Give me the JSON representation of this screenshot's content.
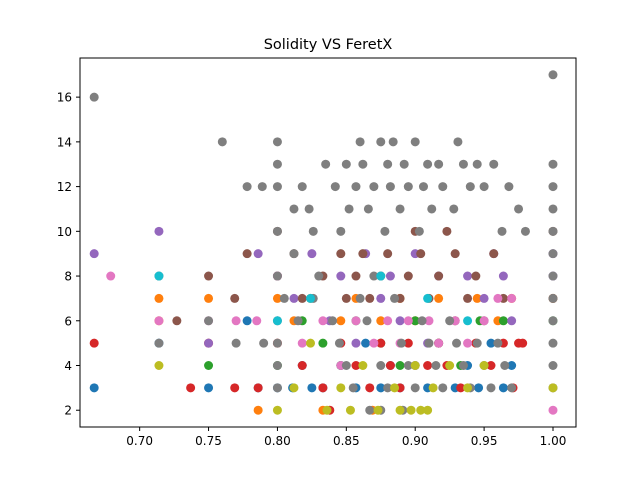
{
  "chart_data": {
    "type": "scatter",
    "title": "Solidity VS FeretX",
    "xlabel": "",
    "ylabel": "",
    "xlim": [
      0.6567,
      1.0167
    ],
    "ylim": [
      1.25,
      17.75
    ],
    "x_ticks": [
      {
        "value": 0.7,
        "label": "0.70"
      },
      {
        "value": 0.75,
        "label": "0.75"
      },
      {
        "value": 0.8,
        "label": "0.80"
      },
      {
        "value": 0.85,
        "label": "0.85"
      },
      {
        "value": 0.9,
        "label": "0.90"
      },
      {
        "value": 0.95,
        "label": "0.95"
      },
      {
        "value": 1.0,
        "label": "1.00"
      }
    ],
    "y_ticks": [
      {
        "value": 2,
        "label": "2"
      },
      {
        "value": 4,
        "label": "4"
      },
      {
        "value": 6,
        "label": "6"
      },
      {
        "value": 8,
        "label": "8"
      },
      {
        "value": 10,
        "label": "10"
      },
      {
        "value": 12,
        "label": "12"
      },
      {
        "value": 14,
        "label": "14"
      },
      {
        "value": 16,
        "label": "16"
      }
    ],
    "grid": false,
    "legend": "none",
    "series": [
      {
        "color": "#1f77b4",
        "points": [
          [
            0.667,
            3
          ],
          [
            0.714,
            5
          ],
          [
            0.75,
            3
          ],
          [
            0.778,
            6
          ],
          [
            0.786,
            3
          ],
          [
            0.8,
            3
          ],
          [
            0.811,
            3
          ],
          [
            0.818,
            4
          ],
          [
            0.825,
            3
          ],
          [
            0.833,
            3
          ],
          [
            0.846,
            4
          ],
          [
            0.857,
            3
          ],
          [
            0.864,
            5
          ],
          [
            0.875,
            3
          ],
          [
            0.882,
            4
          ],
          [
            0.889,
            3
          ],
          [
            0.9,
            4
          ],
          [
            0.909,
            3
          ],
          [
            0.917,
            5
          ],
          [
            0.929,
            3
          ],
          [
            0.938,
            4
          ],
          [
            0.946,
            3
          ],
          [
            0.955,
            5
          ],
          [
            0.964,
            3
          ],
          [
            0.97,
            4
          ]
        ]
      },
      {
        "color": "#ff7f0e",
        "points": [
          [
            0.714,
            6
          ],
          [
            0.714,
            7
          ],
          [
            0.75,
            7
          ],
          [
            0.786,
            2
          ],
          [
            0.8,
            7
          ],
          [
            0.812,
            6
          ],
          [
            0.824,
            7
          ],
          [
            0.833,
            2
          ],
          [
            0.846,
            6
          ],
          [
            0.857,
            7
          ],
          [
            0.869,
            2
          ],
          [
            0.875,
            6
          ],
          [
            0.889,
            7
          ],
          [
            0.9,
            6
          ],
          [
            0.917,
            7
          ],
          [
            0.929,
            6
          ],
          [
            0.945,
            7
          ],
          [
            0.96,
            6
          ],
          [
            0.97,
            7
          ],
          [
            1.0,
            7
          ]
        ]
      },
      {
        "color": "#2ca02c",
        "points": [
          [
            0.75,
            4
          ],
          [
            0.8,
            4
          ],
          [
            0.818,
            6
          ],
          [
            0.833,
            5
          ],
          [
            0.846,
            4
          ],
          [
            0.857,
            6
          ],
          [
            0.875,
            5
          ],
          [
            0.889,
            4
          ],
          [
            0.9,
            6
          ],
          [
            0.917,
            5
          ],
          [
            0.933,
            4
          ],
          [
            0.947,
            6
          ],
          [
            0.964,
            6
          ],
          [
            1.0,
            6
          ]
        ]
      },
      {
        "color": "#d62728",
        "points": [
          [
            0.667,
            5
          ],
          [
            0.737,
            3
          ],
          [
            0.75,
            5
          ],
          [
            0.769,
            3
          ],
          [
            0.786,
            3
          ],
          [
            0.8,
            5
          ],
          [
            0.818,
            4
          ],
          [
            0.833,
            3
          ],
          [
            0.838,
            2
          ],
          [
            0.846,
            5
          ],
          [
            0.857,
            4
          ],
          [
            0.867,
            3
          ],
          [
            0.875,
            5
          ],
          [
            0.882,
            4
          ],
          [
            0.889,
            3
          ],
          [
            0.895,
            5
          ],
          [
            0.909,
            4
          ],
          [
            0.917,
            5
          ],
          [
            0.923,
            4
          ],
          [
            0.933,
            3
          ],
          [
            0.944,
            5
          ],
          [
            0.955,
            4
          ],
          [
            0.964,
            5
          ],
          [
            0.971,
            3
          ],
          [
            0.975,
            5
          ],
          [
            0.978,
            5
          ]
        ]
      },
      {
        "color": "#9467bd",
        "points": [
          [
            0.667,
            9
          ],
          [
            0.714,
            10
          ],
          [
            0.75,
            5
          ],
          [
            0.786,
            9
          ],
          [
            0.8,
            8
          ],
          [
            0.812,
            7
          ],
          [
            0.825,
            9
          ],
          [
            0.838,
            6
          ],
          [
            0.846,
            8
          ],
          [
            0.857,
            5
          ],
          [
            0.864,
            9
          ],
          [
            0.875,
            7
          ],
          [
            0.882,
            8
          ],
          [
            0.889,
            6
          ],
          [
            0.9,
            9
          ],
          [
            0.909,
            5
          ],
          [
            0.917,
            8
          ],
          [
            0.929,
            6
          ],
          [
            0.938,
            8
          ],
          [
            0.95,
            7
          ],
          [
            0.957,
            9
          ],
          [
            0.964,
            8
          ],
          [
            0.97,
            6
          ],
          [
            1.0,
            8
          ],
          [
            1.0,
            9
          ]
        ]
      },
      {
        "color": "#8c564b",
        "points": [
          [
            0.727,
            6
          ],
          [
            0.75,
            8
          ],
          [
            0.769,
            7
          ],
          [
            0.778,
            9
          ],
          [
            0.8,
            10
          ],
          [
            0.8,
            8
          ],
          [
            0.812,
            9
          ],
          [
            0.818,
            7
          ],
          [
            0.833,
            8
          ],
          [
            0.846,
            9
          ],
          [
            0.85,
            7
          ],
          [
            0.857,
            8
          ],
          [
            0.862,
            9
          ],
          [
            0.867,
            7
          ],
          [
            0.875,
            8
          ],
          [
            0.88,
            9
          ],
          [
            0.889,
            7
          ],
          [
            0.895,
            8
          ],
          [
            0.9,
            10
          ],
          [
            0.904,
            9
          ],
          [
            0.91,
            7
          ],
          [
            0.917,
            8
          ],
          [
            0.923,
            10
          ],
          [
            0.929,
            9
          ],
          [
            0.938,
            7
          ],
          [
            0.944,
            8
          ],
          [
            0.95,
            6
          ],
          [
            0.957,
            9
          ],
          [
            0.964,
            7
          ],
          [
            1.0,
            10
          ],
          [
            1.0,
            7
          ]
        ]
      },
      {
        "color": "#e377c2",
        "points": [
          [
            0.679,
            8
          ],
          [
            0.714,
            6
          ],
          [
            0.75,
            6
          ],
          [
            0.77,
            6
          ],
          [
            0.785,
            6
          ],
          [
            0.8,
            8
          ],
          [
            0.818,
            5
          ],
          [
            0.833,
            6
          ],
          [
            0.846,
            4
          ],
          [
            0.857,
            6
          ],
          [
            0.87,
            5
          ],
          [
            0.88,
            6
          ],
          [
            0.889,
            5
          ],
          [
            0.895,
            6
          ],
          [
            0.9,
            4
          ],
          [
            0.91,
            6
          ],
          [
            0.917,
            5
          ],
          [
            0.929,
            6
          ],
          [
            0.938,
            5
          ],
          [
            0.95,
            6
          ],
          [
            0.96,
            7
          ],
          [
            0.97,
            7
          ],
          [
            1.0,
            2
          ]
        ]
      },
      {
        "color": "#7f7f7f",
        "points": [
          [
            0.667,
            16
          ],
          [
            0.714,
            5
          ],
          [
            0.75,
            6
          ],
          [
            0.76,
            14
          ],
          [
            0.778,
            12
          ],
          [
            0.789,
            12
          ],
          [
            0.8,
            14
          ],
          [
            0.8,
            13
          ],
          [
            0.8,
            12
          ],
          [
            0.8,
            10
          ],
          [
            0.8,
            8
          ],
          [
            0.8,
            6
          ],
          [
            0.8,
            5
          ],
          [
            0.8,
            4
          ],
          [
            0.8,
            3
          ],
          [
            0.812,
            11
          ],
          [
            0.812,
            9
          ],
          [
            0.818,
            12
          ],
          [
            0.823,
            11
          ],
          [
            0.826,
            10
          ],
          [
            0.835,
            13
          ],
          [
            0.842,
            12
          ],
          [
            0.846,
            10
          ],
          [
            0.85,
            13
          ],
          [
            0.852,
            11
          ],
          [
            0.857,
            12
          ],
          [
            0.86,
            14
          ],
          [
            0.862,
            13
          ],
          [
            0.866,
            11
          ],
          [
            0.87,
            12
          ],
          [
            0.875,
            14
          ],
          [
            0.878,
            10
          ],
          [
            0.88,
            13
          ],
          [
            0.882,
            12
          ],
          [
            0.884,
            14
          ],
          [
            0.889,
            11
          ],
          [
            0.892,
            13
          ],
          [
            0.895,
            12
          ],
          [
            0.9,
            14
          ],
          [
            0.903,
            10
          ],
          [
            0.906,
            12
          ],
          [
            0.909,
            13
          ],
          [
            0.912,
            11
          ],
          [
            0.917,
            13
          ],
          [
            0.92,
            12
          ],
          [
            0.928,
            11
          ],
          [
            0.931,
            14
          ],
          [
            0.935,
            13
          ],
          [
            0.94,
            12
          ],
          [
            0.945,
            13
          ],
          [
            0.95,
            12
          ],
          [
            0.957,
            13
          ],
          [
            0.963,
            10
          ],
          [
            0.968,
            12
          ],
          [
            0.975,
            11
          ],
          [
            0.98,
            10
          ],
          [
            1.0,
            17
          ],
          [
            1.0,
            13
          ],
          [
            1.0,
            12
          ],
          [
            1.0,
            11
          ],
          [
            1.0,
            10
          ],
          [
            1.0,
            9
          ],
          [
            1.0,
            8
          ],
          [
            1.0,
            7
          ],
          [
            1.0,
            6
          ],
          [
            1.0,
            5
          ],
          [
            1.0,
            4
          ],
          [
            1.0,
            3
          ],
          [
            0.714,
            8
          ],
          [
            0.77,
            5
          ],
          [
            0.79,
            5
          ],
          [
            0.805,
            7
          ],
          [
            0.815,
            6
          ],
          [
            0.826,
            7
          ],
          [
            0.83,
            8
          ],
          [
            0.84,
            6
          ],
          [
            0.845,
            5
          ],
          [
            0.85,
            4
          ],
          [
            0.855,
            3
          ],
          [
            0.86,
            7
          ],
          [
            0.865,
            6
          ],
          [
            0.87,
            8
          ],
          [
            0.875,
            4
          ],
          [
            0.88,
            3
          ],
          [
            0.885,
            7
          ],
          [
            0.89,
            5
          ],
          [
            0.895,
            4
          ],
          [
            0.9,
            3
          ],
          [
            0.905,
            6
          ],
          [
            0.91,
            5
          ],
          [
            0.915,
            4
          ],
          [
            0.92,
            3
          ],
          [
            0.925,
            6
          ],
          [
            0.93,
            5
          ],
          [
            0.935,
            4
          ],
          [
            0.94,
            3
          ],
          [
            0.945,
            5
          ],
          [
            0.95,
            4
          ],
          [
            0.955,
            3
          ],
          [
            0.96,
            5
          ],
          [
            0.965,
            4
          ],
          [
            0.97,
            3
          ],
          [
            0.875,
            2
          ],
          [
            0.867,
            2
          ],
          [
            0.891,
            2
          ]
        ]
      },
      {
        "color": "#bcbd22",
        "points": [
          [
            0.714,
            4
          ],
          [
            0.8,
            2
          ],
          [
            0.812,
            3
          ],
          [
            0.824,
            5
          ],
          [
            0.836,
            2
          ],
          [
            0.846,
            3
          ],
          [
            0.853,
            2
          ],
          [
            0.862,
            4
          ],
          [
            0.873,
            2
          ],
          [
            0.885,
            3
          ],
          [
            0.889,
            2
          ],
          [
            0.897,
            2
          ],
          [
            0.9,
            4
          ],
          [
            0.904,
            2
          ],
          [
            0.909,
            2
          ],
          [
            0.913,
            3
          ],
          [
            0.925,
            4
          ],
          [
            0.938,
            3
          ],
          [
            0.95,
            4
          ],
          [
            1.0,
            3
          ]
        ]
      },
      {
        "color": "#17becf",
        "points": [
          [
            0.714,
            8
          ],
          [
            0.8,
            6
          ],
          [
            0.824,
            7
          ],
          [
            0.875,
            8
          ],
          [
            0.909,
            7
          ],
          [
            0.938,
            6
          ]
        ]
      }
    ]
  }
}
